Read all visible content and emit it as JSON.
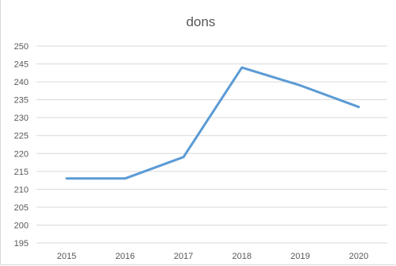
{
  "chart_data": {
    "type": "line",
    "title": "dons",
    "x": [
      "2015",
      "2016",
      "2017",
      "2018",
      "2019",
      "2020"
    ],
    "series": [
      {
        "values": [
          213,
          213,
          219,
          244,
          239,
          233
        ]
      }
    ],
    "yticks": [
      "195",
      "200",
      "205",
      "210",
      "215",
      "220",
      "225",
      "230",
      "235",
      "240",
      "245",
      "250"
    ],
    "ylim": [
      195,
      250
    ],
    "grid": true,
    "legend": "none",
    "line_color": "#5b9bd5"
  }
}
